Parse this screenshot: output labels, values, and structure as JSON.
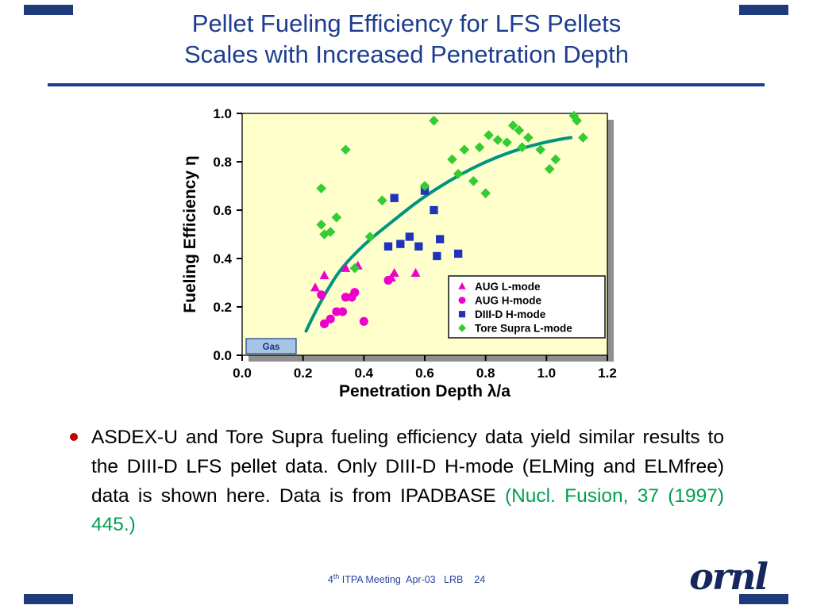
{
  "slide": {
    "title_line1": "Pellet Fueling Efficiency for LFS Pellets",
    "title_line2": "Scales with Increased Penetration Depth",
    "logo_text": "ornl"
  },
  "bullet": {
    "text": "ASDEX-U and Tore Supra fueling efficiency data yield similar results to the DIII-D LFS pellet data.  Only DIII-D H-mode (ELMing and ELMfree) data is shown here.   Data is from IPADBASE ",
    "citation": "(Nucl. Fusion, 37 (1997) 445.)"
  },
  "footer": {
    "num": "4",
    "sup": "th",
    "rest": " ITPA Meeting  Apr-03   LRB    24"
  },
  "colors": {
    "title_blue": "#1d3d8f",
    "citation_green": "#00a050",
    "bullet_red": "#c00000",
    "footer_blue": "#2a41a0",
    "logo_navy": "#16265e",
    "corner_navy": "#1e3a7a",
    "plot_shadow": "#8f8f8f"
  },
  "chart_data": {
    "type": "scatter",
    "xlabel": "Penetration Depth λ/a",
    "ylabel": "Fueling Efficiency η",
    "xlim": [
      0,
      1.2
    ],
    "ylim": [
      0,
      1.0
    ],
    "xticks": [
      0.0,
      0.2,
      0.4,
      0.6,
      0.8,
      1.0,
      1.2
    ],
    "yticks": [
      0.0,
      0.2,
      0.4,
      0.6,
      0.8,
      1.0
    ],
    "plot_bg": "#FFFFCC",
    "grid": false,
    "legend_position": "inside lower-right",
    "annotation_label": "Gas",
    "series": [
      {
        "name": "AUG L-mode",
        "marker": "triangle",
        "color": "#ee00cc",
        "points": [
          [
            0.24,
            0.28
          ],
          [
            0.27,
            0.33
          ],
          [
            0.34,
            0.36
          ],
          [
            0.38,
            0.37
          ],
          [
            0.49,
            0.32
          ],
          [
            0.5,
            0.34
          ],
          [
            0.57,
            0.34
          ]
        ]
      },
      {
        "name": "AUG H-mode",
        "marker": "circle",
        "color": "#ee00cc",
        "points": [
          [
            0.26,
            0.25
          ],
          [
            0.27,
            0.13
          ],
          [
            0.29,
            0.15
          ],
          [
            0.31,
            0.18
          ],
          [
            0.33,
            0.18
          ],
          [
            0.34,
            0.24
          ],
          [
            0.36,
            0.24
          ],
          [
            0.37,
            0.26
          ],
          [
            0.4,
            0.14
          ],
          [
            0.48,
            0.31
          ]
        ]
      },
      {
        "name": "DIII-D H-mode",
        "marker": "square",
        "color": "#2233bb",
        "points": [
          [
            0.48,
            0.45
          ],
          [
            0.5,
            0.65
          ],
          [
            0.52,
            0.46
          ],
          [
            0.55,
            0.49
          ],
          [
            0.58,
            0.45
          ],
          [
            0.6,
            0.68
          ],
          [
            0.63,
            0.6
          ],
          [
            0.64,
            0.41
          ],
          [
            0.65,
            0.48
          ],
          [
            0.71,
            0.42
          ]
        ]
      },
      {
        "name": "Tore Supra L-mode",
        "marker": "diamond",
        "color": "#33cc33",
        "points": [
          [
            0.26,
            0.69
          ],
          [
            0.26,
            0.54
          ],
          [
            0.27,
            0.5
          ],
          [
            0.29,
            0.51
          ],
          [
            0.31,
            0.57
          ],
          [
            0.34,
            0.85
          ],
          [
            0.37,
            0.36
          ],
          [
            0.42,
            0.49
          ],
          [
            0.46,
            0.64
          ],
          [
            0.6,
            0.7
          ],
          [
            0.63,
            0.97
          ],
          [
            0.69,
            0.81
          ],
          [
            0.71,
            0.75
          ],
          [
            0.73,
            0.85
          ],
          [
            0.76,
            0.72
          ],
          [
            0.78,
            0.86
          ],
          [
            0.8,
            0.67
          ],
          [
            0.81,
            0.91
          ],
          [
            0.84,
            0.89
          ],
          [
            0.87,
            0.88
          ],
          [
            0.89,
            0.95
          ],
          [
            0.91,
            0.93
          ],
          [
            0.92,
            0.86
          ],
          [
            0.94,
            0.9
          ],
          [
            0.98,
            0.85
          ],
          [
            1.01,
            0.77
          ],
          [
            1.03,
            0.81
          ],
          [
            1.09,
            0.99
          ],
          [
            1.1,
            0.97
          ],
          [
            1.12,
            0.9
          ]
        ]
      }
    ],
    "trend_curve": {
      "color": "#00937e",
      "points": [
        [
          0.21,
          0.1
        ],
        [
          0.24,
          0.18
        ],
        [
          0.28,
          0.27
        ],
        [
          0.32,
          0.35
        ],
        [
          0.37,
          0.42
        ],
        [
          0.43,
          0.49
        ],
        [
          0.5,
          0.56
        ],
        [
          0.57,
          0.63
        ],
        [
          0.64,
          0.69
        ],
        [
          0.72,
          0.75
        ],
        [
          0.8,
          0.8
        ],
        [
          0.88,
          0.84
        ],
        [
          0.96,
          0.87
        ],
        [
          1.03,
          0.89
        ],
        [
          1.08,
          0.9
        ]
      ]
    }
  }
}
